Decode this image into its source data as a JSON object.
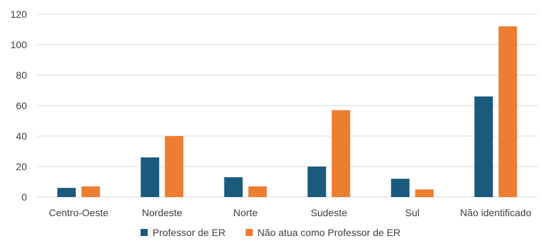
{
  "colors": {
    "series1": "#1a5a7d",
    "series2": "#ed7d31",
    "grid": "#d9d9d9",
    "text": "#404040"
  },
  "chart_data": {
    "type": "bar",
    "title": "",
    "xlabel": "",
    "ylabel": "",
    "ylim": [
      0,
      120
    ],
    "yticks": [
      0,
      20,
      40,
      60,
      80,
      100,
      120
    ],
    "grid": true,
    "legend_position": "bottom",
    "categories": [
      "Centro-Oeste",
      "Nordeste",
      "Norte",
      "Sudeste",
      "Sul",
      "Não identificado"
    ],
    "series": [
      {
        "name": "Professor de ER",
        "values": [
          6,
          26,
          13,
          20,
          12,
          66
        ]
      },
      {
        "name": "Não atua como Professor de ER",
        "values": [
          7,
          40,
          7,
          57,
          5,
          112
        ]
      }
    ]
  }
}
